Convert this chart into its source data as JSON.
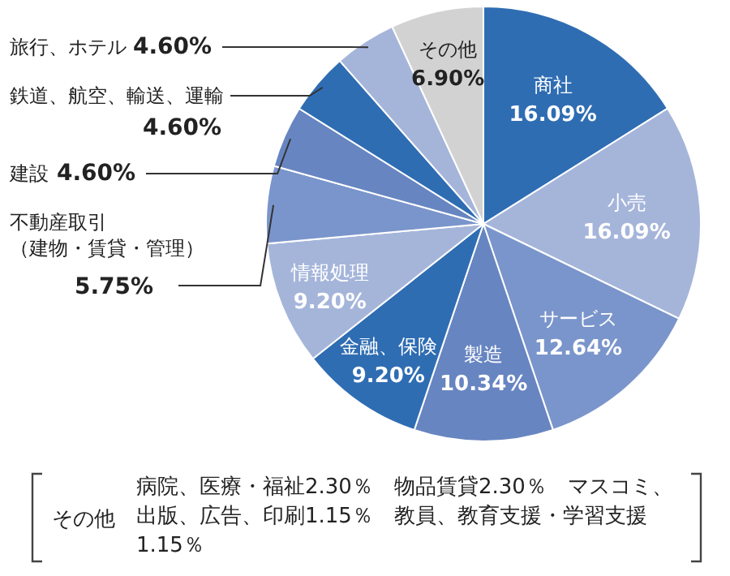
{
  "chart_data": {
    "type": "pie",
    "categories": [
      "商社",
      "小売",
      "サービス",
      "製造",
      "金融、保険",
      "情報処理",
      "不動産取引（建物・賃貸・管理）",
      "建設",
      "鉄道、航空、輸送、運輸",
      "旅行、ホテル",
      "その他"
    ],
    "values": [
      16.09,
      16.09,
      12.64,
      10.34,
      9.2,
      9.2,
      5.75,
      4.6,
      4.6,
      4.6,
      6.9
    ],
    "value_labels": [
      "16.09%",
      "16.09%",
      "12.64%",
      "10.34%",
      "9.20%",
      "9.20%",
      "5.75%",
      "4.60%",
      "4.60%",
      "4.60%",
      "6.90%"
    ],
    "colors": [
      "#2f6db3",
      "#a5b5da",
      "#7a95cb",
      "#6785c1",
      "#2f6db3",
      "#a5b5da",
      "#7a95cb",
      "#6785c1",
      "#2f6db3",
      "#a5b5da",
      "#d2d2d2"
    ],
    "annotations": [
      "その他",
      "病院、医療・福祉2.30％　物品賃貸2.30％　マスコミ、出版、広告、印刷1.15％　教員、教育支援・学習支援1.15％"
    ]
  }
}
